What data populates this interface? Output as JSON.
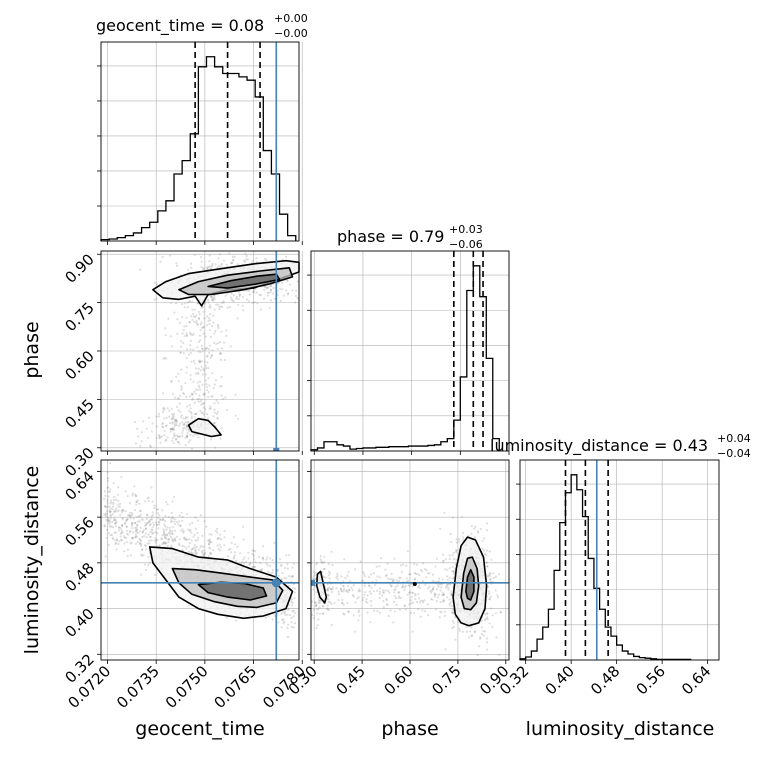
{
  "colors": {
    "truth": "#4682b4",
    "contour": "#000000",
    "grid": "#b0b0b0",
    "hist": "#000000",
    "scatter": "#888888"
  },
  "chart_data": [
    {
      "type": "histogram",
      "panel": "geocent_time-1d",
      "title": {
        "param": "geocent_time",
        "value": "0.08",
        "plus": "+0.00",
        "minus": "−0.00"
      },
      "xlim": [
        0.0718,
        0.0779
      ],
      "bins": [
        0.0718,
        0.07205,
        0.0723,
        0.07255,
        0.0728,
        0.07305,
        0.0733,
        0.07355,
        0.0738,
        0.07405,
        0.0743,
        0.07455,
        0.0748,
        0.07505,
        0.0753,
        0.07555,
        0.0758,
        0.07605,
        0.0763,
        0.07655,
        0.0768,
        0.07705,
        0.0773,
        0.07755,
        0.0778
      ],
      "counts": [
        2,
        3,
        5,
        8,
        12,
        20,
        28,
        45,
        60,
        100,
        120,
        160,
        260,
        275,
        260,
        250,
        250,
        245,
        240,
        215,
        135,
        100,
        40,
        8
      ],
      "quantiles": [
        0.0747,
        0.0757,
        0.0767
      ],
      "truth": 0.0772
    },
    {
      "type": "histogram",
      "panel": "phase-1d",
      "title": {
        "param": "phase",
        "value": "0.79",
        "plus": "+0.03",
        "minus": "−0.06"
      },
      "xlim": [
        0.29,
        0.9
      ],
      "bins": [
        0.29,
        0.31,
        0.33,
        0.35,
        0.37,
        0.39,
        0.41,
        0.43,
        0.45,
        0.47,
        0.49,
        0.51,
        0.53,
        0.55,
        0.57,
        0.59,
        0.61,
        0.63,
        0.65,
        0.67,
        0.69,
        0.71,
        0.73,
        0.75,
        0.77,
        0.79,
        0.81,
        0.83,
        0.85,
        0.87
      ],
      "counts": [
        2,
        5,
        15,
        15,
        10,
        8,
        3,
        4,
        5,
        5,
        6,
        6,
        7,
        7,
        7,
        8,
        8,
        8,
        9,
        10,
        15,
        20,
        50,
        120,
        260,
        300,
        250,
        150,
        20
      ],
      "quantiles": [
        0.73,
        0.79,
        0.82
      ],
      "truth": null
    },
    {
      "type": "histogram",
      "panel": "luminosity_distance-1d",
      "title": {
        "param": "luminosity_distance",
        "value": "0.43",
        "plus": "+0.04",
        "minus": "−0.04"
      },
      "xlim": [
        0.31,
        0.66
      ],
      "bins": [
        0.31,
        0.32,
        0.33,
        0.34,
        0.35,
        0.36,
        0.37,
        0.38,
        0.39,
        0.4,
        0.41,
        0.42,
        0.43,
        0.44,
        0.45,
        0.46,
        0.47,
        0.48,
        0.49,
        0.5,
        0.51,
        0.52,
        0.53,
        0.54,
        0.55,
        0.56,
        0.57,
        0.58,
        0.59,
        0.6,
        0.61
      ],
      "counts": [
        2,
        5,
        15,
        35,
        55,
        85,
        150,
        230,
        280,
        310,
        285,
        240,
        170,
        120,
        85,
        55,
        40,
        25,
        15,
        10,
        6,
        4,
        3,
        2,
        1,
        1,
        1,
        1,
        1,
        1
      ],
      "quantiles": [
        0.39,
        0.425,
        0.465
      ],
      "truth": 0.445
    },
    {
      "type": "scatter",
      "panel": "phase-vs-geocent_time",
      "x_param": "geocent_time",
      "y_param": "phase",
      "xlim": [
        0.0718,
        0.0779
      ],
      "ylim": [
        0.29,
        0.91
      ],
      "contours": [
        [
          [
            0.0734,
            0.79
          ],
          [
            0.0738,
            0.815
          ],
          [
            0.0745,
            0.84
          ],
          [
            0.0755,
            0.855
          ],
          [
            0.0765,
            0.87
          ],
          [
            0.0775,
            0.88
          ],
          [
            0.0779,
            0.875
          ],
          [
            0.0779,
            0.845
          ],
          [
            0.0772,
            0.82
          ],
          [
            0.0765,
            0.795
          ],
          [
            0.0757,
            0.79
          ],
          [
            0.0751,
            0.775
          ],
          [
            0.0749,
            0.74
          ],
          [
            0.0747,
            0.77
          ],
          [
            0.0742,
            0.76
          ],
          [
            0.0737,
            0.765
          ]
        ],
        [
          [
            0.0742,
            0.79
          ],
          [
            0.0748,
            0.815
          ],
          [
            0.0757,
            0.835
          ],
          [
            0.0767,
            0.848
          ],
          [
            0.0776,
            0.858
          ],
          [
            0.0777,
            0.83
          ],
          [
            0.077,
            0.808
          ],
          [
            0.0762,
            0.79
          ],
          [
            0.0752,
            0.775
          ],
          [
            0.0745,
            0.775
          ]
        ],
        [
          [
            0.0751,
            0.8
          ],
          [
            0.0758,
            0.818
          ],
          [
            0.0766,
            0.832
          ],
          [
            0.0772,
            0.838
          ],
          [
            0.0773,
            0.822
          ],
          [
            0.0766,
            0.808
          ],
          [
            0.0757,
            0.795
          ]
        ],
        [
          [
            0.0748,
            0.39
          ],
          [
            0.0751,
            0.385
          ],
          [
            0.0753,
            0.365
          ],
          [
            0.0755,
            0.34
          ],
          [
            0.0752,
            0.335
          ],
          [
            0.0746,
            0.35
          ],
          [
            0.0745,
            0.37
          ]
        ]
      ],
      "truth": [
        0.0772,
        null
      ]
    },
    {
      "type": "scatter",
      "panel": "luminosity_distance-vs-geocent_time",
      "x_param": "geocent_time",
      "y_param": "luminosity_distance",
      "xlim": [
        0.0718,
        0.0779
      ],
      "ylim": [
        0.31,
        0.66
      ],
      "contours": [
        [
          [
            0.0733,
            0.508
          ],
          [
            0.074,
            0.505
          ],
          [
            0.0748,
            0.49
          ],
          [
            0.0757,
            0.485
          ],
          [
            0.0764,
            0.47
          ],
          [
            0.0772,
            0.455
          ],
          [
            0.0777,
            0.43
          ],
          [
            0.0775,
            0.4
          ],
          [
            0.0768,
            0.387
          ],
          [
            0.0762,
            0.383
          ],
          [
            0.0754,
            0.39
          ],
          [
            0.0748,
            0.4
          ],
          [
            0.0742,
            0.42
          ],
          [
            0.0738,
            0.45
          ],
          [
            0.0734,
            0.48
          ]
        ],
        [
          [
            0.074,
            0.47
          ],
          [
            0.0747,
            0.468
          ],
          [
            0.0755,
            0.462
          ],
          [
            0.0764,
            0.455
          ],
          [
            0.0771,
            0.45
          ],
          [
            0.0774,
            0.432
          ],
          [
            0.0772,
            0.41
          ],
          [
            0.0766,
            0.402
          ],
          [
            0.076,
            0.404
          ],
          [
            0.0753,
            0.412
          ],
          [
            0.0746,
            0.425
          ],
          [
            0.0742,
            0.445
          ]
        ],
        [
          [
            0.0748,
            0.442
          ],
          [
            0.0755,
            0.446
          ],
          [
            0.0762,
            0.444
          ],
          [
            0.0768,
            0.436
          ],
          [
            0.0769,
            0.422
          ],
          [
            0.0764,
            0.415
          ],
          [
            0.0757,
            0.42
          ],
          [
            0.0751,
            0.428
          ]
        ]
      ],
      "truth": [
        0.0772,
        0.445
      ]
    },
    {
      "type": "scatter",
      "panel": "luminosity_distance-vs-phase",
      "x_param": "phase",
      "y_param": "luminosity_distance",
      "xlim": [
        0.29,
        0.91
      ],
      "ylim": [
        0.31,
        0.66
      ],
      "contours": [
        [
          [
            0.735,
            0.42
          ],
          [
            0.745,
            0.47
          ],
          [
            0.76,
            0.51
          ],
          [
            0.78,
            0.525
          ],
          [
            0.805,
            0.52
          ],
          [
            0.83,
            0.49
          ],
          [
            0.84,
            0.44
          ],
          [
            0.835,
            0.4
          ],
          [
            0.815,
            0.375
          ],
          [
            0.785,
            0.37
          ],
          [
            0.76,
            0.375
          ],
          [
            0.742,
            0.39
          ]
        ],
        [
          [
            0.76,
            0.42
          ],
          [
            0.768,
            0.462
          ],
          [
            0.78,
            0.488
          ],
          [
            0.795,
            0.49
          ],
          [
            0.81,
            0.47
          ],
          [
            0.815,
            0.44
          ],
          [
            0.808,
            0.41
          ],
          [
            0.79,
            0.398
          ],
          [
            0.77,
            0.4
          ]
        ],
        [
          [
            0.775,
            0.43
          ],
          [
            0.78,
            0.455
          ],
          [
            0.79,
            0.468
          ],
          [
            0.8,
            0.455
          ],
          [
            0.8,
            0.43
          ],
          [
            0.79,
            0.415
          ],
          [
            0.78,
            0.418
          ]
        ],
        [
          [
            0.31,
            0.46
          ],
          [
            0.32,
            0.465
          ],
          [
            0.328,
            0.445
          ],
          [
            0.338,
            0.42
          ],
          [
            0.333,
            0.41
          ],
          [
            0.318,
            0.42
          ],
          [
            0.308,
            0.44
          ]
        ]
      ],
      "truth": [
        null,
        0.445
      ]
    }
  ],
  "labels": {
    "geocent_time": "geocent_time",
    "phase": "phase",
    "luminosity_distance": "luminosity_distance",
    "geocent_ticks": [
      "0.0720",
      "0.0735",
      "0.0750",
      "0.0765",
      "0.0780"
    ],
    "phase_ticks": [
      "0.30",
      "0.45",
      "0.60",
      "0.75",
      "0.90"
    ],
    "dist_ticks": [
      "0.32",
      "0.40",
      "0.48",
      "0.56",
      "0.64"
    ]
  }
}
